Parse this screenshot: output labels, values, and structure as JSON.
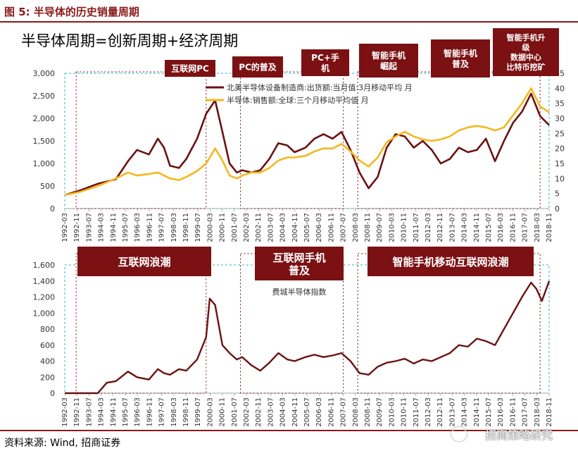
{
  "figure_title": "图 5:  半导体的历史销量周期",
  "heading": "半导体周期=创新周期+经济周期",
  "source": "资料来源:  Wind,  招商证券",
  "watermark": "招商策略研究",
  "colors": {
    "maroon": "#7B1113",
    "gold": "#F4B81E",
    "dark_line": "#6B1212",
    "dashed": "#29B6D8"
  },
  "chart_data": [
    {
      "type": "line",
      "x_tick_labels": [
        "1992-03",
        "1992-11",
        "1993-07",
        "1994-03",
        "1994-11",
        "1995-07",
        "1996-03",
        "1996-11",
        "1997-07",
        "1998-03",
        "1998-11",
        "1999-07",
        "2000-03",
        "2000-11",
        "2001-07",
        "2002-03",
        "2002-11",
        "2003-07",
        "2004-03",
        "2004-11",
        "2005-07",
        "2006-03",
        "2006-11",
        "2007-07",
        "2008-03",
        "2008-11",
        "2009-07",
        "2010-03",
        "2010-11",
        "2011-07",
        "2012-03",
        "2012-11",
        "2013-07",
        "2014-03",
        "2014-11",
        "2015-07",
        "2016-03",
        "2016-11",
        "2017-07",
        "2018-03",
        "2018-11"
      ],
      "y_left_ticks": [
        "0",
        "500",
        "1,000",
        "1,500",
        "2,000",
        "2,500",
        "3,000"
      ],
      "y_right_ticks": [
        "0",
        "5",
        "10",
        "15",
        "20",
        "25",
        "30",
        "35",
        "40",
        "45"
      ],
      "ylim_left": [
        0,
        3000
      ],
      "ylim_right": [
        0,
        45
      ],
      "series": [
        {
          "name": "北美半导体设备制造商:出货额:当月值:3月移动平均 月",
          "axis": "left",
          "color": "#6B1212",
          "x": [
            1992.17,
            1993.0,
            1994.0,
            1995.0,
            1995.67,
            1996.17,
            1996.83,
            1997.33,
            1997.67,
            1998.0,
            1998.5,
            1998.9,
            1999.5,
            2000.0,
            2000.5,
            2000.9,
            2001.3,
            2001.7,
            2002.0,
            2002.5,
            2003.0,
            2003.5,
            2004.0,
            2004.5,
            2004.9,
            2005.5,
            2006.0,
            2006.5,
            2007.0,
            2007.5,
            2008.0,
            2008.5,
            2009.0,
            2009.5,
            2010.0,
            2010.5,
            2011.0,
            2011.5,
            2012.0,
            2012.5,
            2013.0,
            2013.5,
            2014.0,
            2014.5,
            2015.0,
            2015.5,
            2016.0,
            2016.5,
            2017.0,
            2017.5,
            2018.0,
            2018.5,
            2019.0
          ],
          "y": [
            300,
            400,
            550,
            650,
            1050,
            1300,
            1200,
            1550,
            1350,
            950,
            900,
            1100,
            1550,
            2100,
            2400,
            1700,
            1000,
            800,
            850,
            800,
            850,
            1100,
            1450,
            1400,
            1250,
            1350,
            1550,
            1650,
            1550,
            1700,
            1300,
            800,
            450,
            700,
            1350,
            1650,
            1600,
            1350,
            1500,
            1300,
            1000,
            1100,
            1350,
            1250,
            1300,
            1550,
            1050,
            1500,
            1900,
            2150,
            2550,
            2050,
            1850
          ]
        },
        {
          "name": "半导体:销售额:全球:三个月移动平均值 月",
          "axis": "right",
          "color": "#F4B81E",
          "x": [
            1992.17,
            1993.0,
            1994.0,
            1995.0,
            1995.67,
            1996.17,
            1996.83,
            1997.33,
            1997.67,
            1998.0,
            1998.5,
            1998.9,
            1999.5,
            2000.0,
            2000.5,
            2000.9,
            2001.3,
            2001.7,
            2002.0,
            2002.5,
            2003.0,
            2003.5,
            2004.0,
            2004.5,
            2004.9,
            2005.5,
            2006.0,
            2006.5,
            2007.0,
            2007.5,
            2008.0,
            2008.5,
            2009.0,
            2009.5,
            2010.0,
            2010.5,
            2011.0,
            2011.5,
            2012.0,
            2012.5,
            2013.0,
            2013.5,
            2014.0,
            2014.5,
            2015.0,
            2015.5,
            2016.0,
            2016.5,
            2017.0,
            2017.5,
            2018.0,
            2018.5,
            2019.0
          ],
          "y": [
            4.5,
            5.5,
            7.5,
            10,
            12,
            11,
            11.5,
            12,
            11,
            10,
            9.5,
            10.5,
            12.5,
            15,
            20,
            16,
            11,
            10,
            11,
            12,
            12,
            13.5,
            16,
            17,
            17,
            17.5,
            19,
            20,
            20,
            21.5,
            19,
            16,
            14,
            17,
            22,
            24,
            25.5,
            24,
            23,
            22.5,
            23,
            24,
            26,
            27,
            27.5,
            27,
            26,
            27,
            31,
            35,
            40,
            34,
            32
          ]
        }
      ],
      "annotations": [
        "互联网PC",
        "PC的普及",
        "PC+手机",
        "智能手机崛起",
        "智能手机普及",
        "智能手机升级数据中心比特币挖矿"
      ]
    },
    {
      "type": "line",
      "title": "费城半导体指数",
      "x_tick_labels": [
        "1992-03",
        "1992-11",
        "1993-07",
        "1994-03",
        "1994-11",
        "1995-07",
        "1996-03",
        "1996-11",
        "1997-07",
        "1998-03",
        "1998-11",
        "1999-07",
        "2000-03",
        "2000-11",
        "2001-07",
        "2002-03",
        "2002-11",
        "2003-07",
        "2004-03",
        "2004-11",
        "2005-07",
        "2006-03",
        "2006-11",
        "2007-07",
        "2008-03",
        "2008-11",
        "2009-07",
        "2010-03",
        "2010-11",
        "2011-07",
        "2012-03",
        "2012-11",
        "2013-07",
        "2014-03",
        "2014-11",
        "2015-07",
        "2016-03",
        "2016-11",
        "2017-07",
        "2018-03",
        "2018-11"
      ],
      "y_ticks": [
        "0",
        "200",
        "400",
        "600",
        "800",
        "1,000",
        "1,200",
        "1,400",
        "1,600"
      ],
      "ylim": [
        0,
        1600
      ],
      "series": [
        {
          "name": "费城半导体指数",
          "color": "#6B1212",
          "x": [
            1992.17,
            1993.0,
            1994.0,
            1994.5,
            1995.0,
            1995.67,
            1996.17,
            1996.83,
            1997.33,
            1997.67,
            1998.0,
            1998.5,
            1998.9,
            1999.5,
            2000.0,
            2000.2,
            2000.5,
            2000.9,
            2001.3,
            2001.7,
            2002.0,
            2002.5,
            2003.0,
            2003.5,
            2004.0,
            2004.5,
            2004.9,
            2005.5,
            2006.0,
            2006.5,
            2007.0,
            2007.5,
            2008.0,
            2008.5,
            2009.0,
            2009.5,
            2010.0,
            2010.5,
            2011.0,
            2011.5,
            2012.0,
            2012.5,
            2013.0,
            2013.5,
            2014.0,
            2014.5,
            2015.0,
            2015.5,
            2016.0,
            2016.5,
            2017.0,
            2017.5,
            2018.0,
            2018.3,
            2018.6,
            2019.0
          ],
          "y": [
            0,
            0,
            0,
            130,
            150,
            270,
            200,
            170,
            300,
            250,
            230,
            300,
            280,
            420,
            700,
            1180,
            1100,
            600,
            500,
            420,
            450,
            350,
            280,
            380,
            500,
            420,
            400,
            450,
            480,
            450,
            470,
            500,
            400,
            250,
            230,
            330,
            380,
            400,
            430,
            370,
            420,
            400,
            450,
            500,
            600,
            580,
            680,
            650,
            600,
            800,
            1000,
            1200,
            1380,
            1300,
            1150,
            1400
          ]
        }
      ],
      "annotations": [
        "互联网浪潮",
        "互联网手机普及",
        "智能手机移动互联网浪潮"
      ]
    }
  ]
}
